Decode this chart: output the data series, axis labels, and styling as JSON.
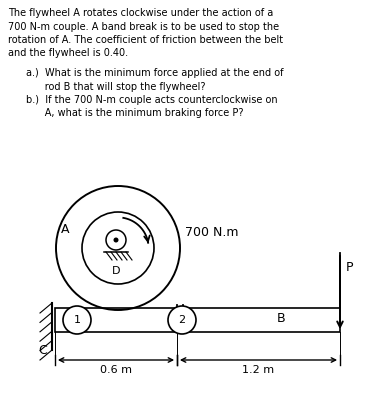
{
  "bg_color": "#ffffff",
  "text_color": "#000000",
  "title_lines": [
    "The flywheel A rotates clockwise under the action of a",
    "700 N-m couple. A band break is to be used to stop the",
    "rotation of A. The coefficient of friction between the belt",
    "and the flywheel is 0.40."
  ],
  "question_a": "a.)  What is the minimum force applied at the end of",
  "question_a2": "      rod B that will stop the flywheel?",
  "question_b": "b.)  If the 700 N-m couple acts counterclockwise on",
  "question_b2": "      A, what is the minimum braking force P?",
  "label_A": "A",
  "label_D": "D",
  "label_700": "700 N.m",
  "label_P": "P",
  "label_B": "B",
  "label_C": "C",
  "label_1": "1",
  "label_2": "2",
  "label_06": "0.6 m",
  "label_12": "1.2 m"
}
